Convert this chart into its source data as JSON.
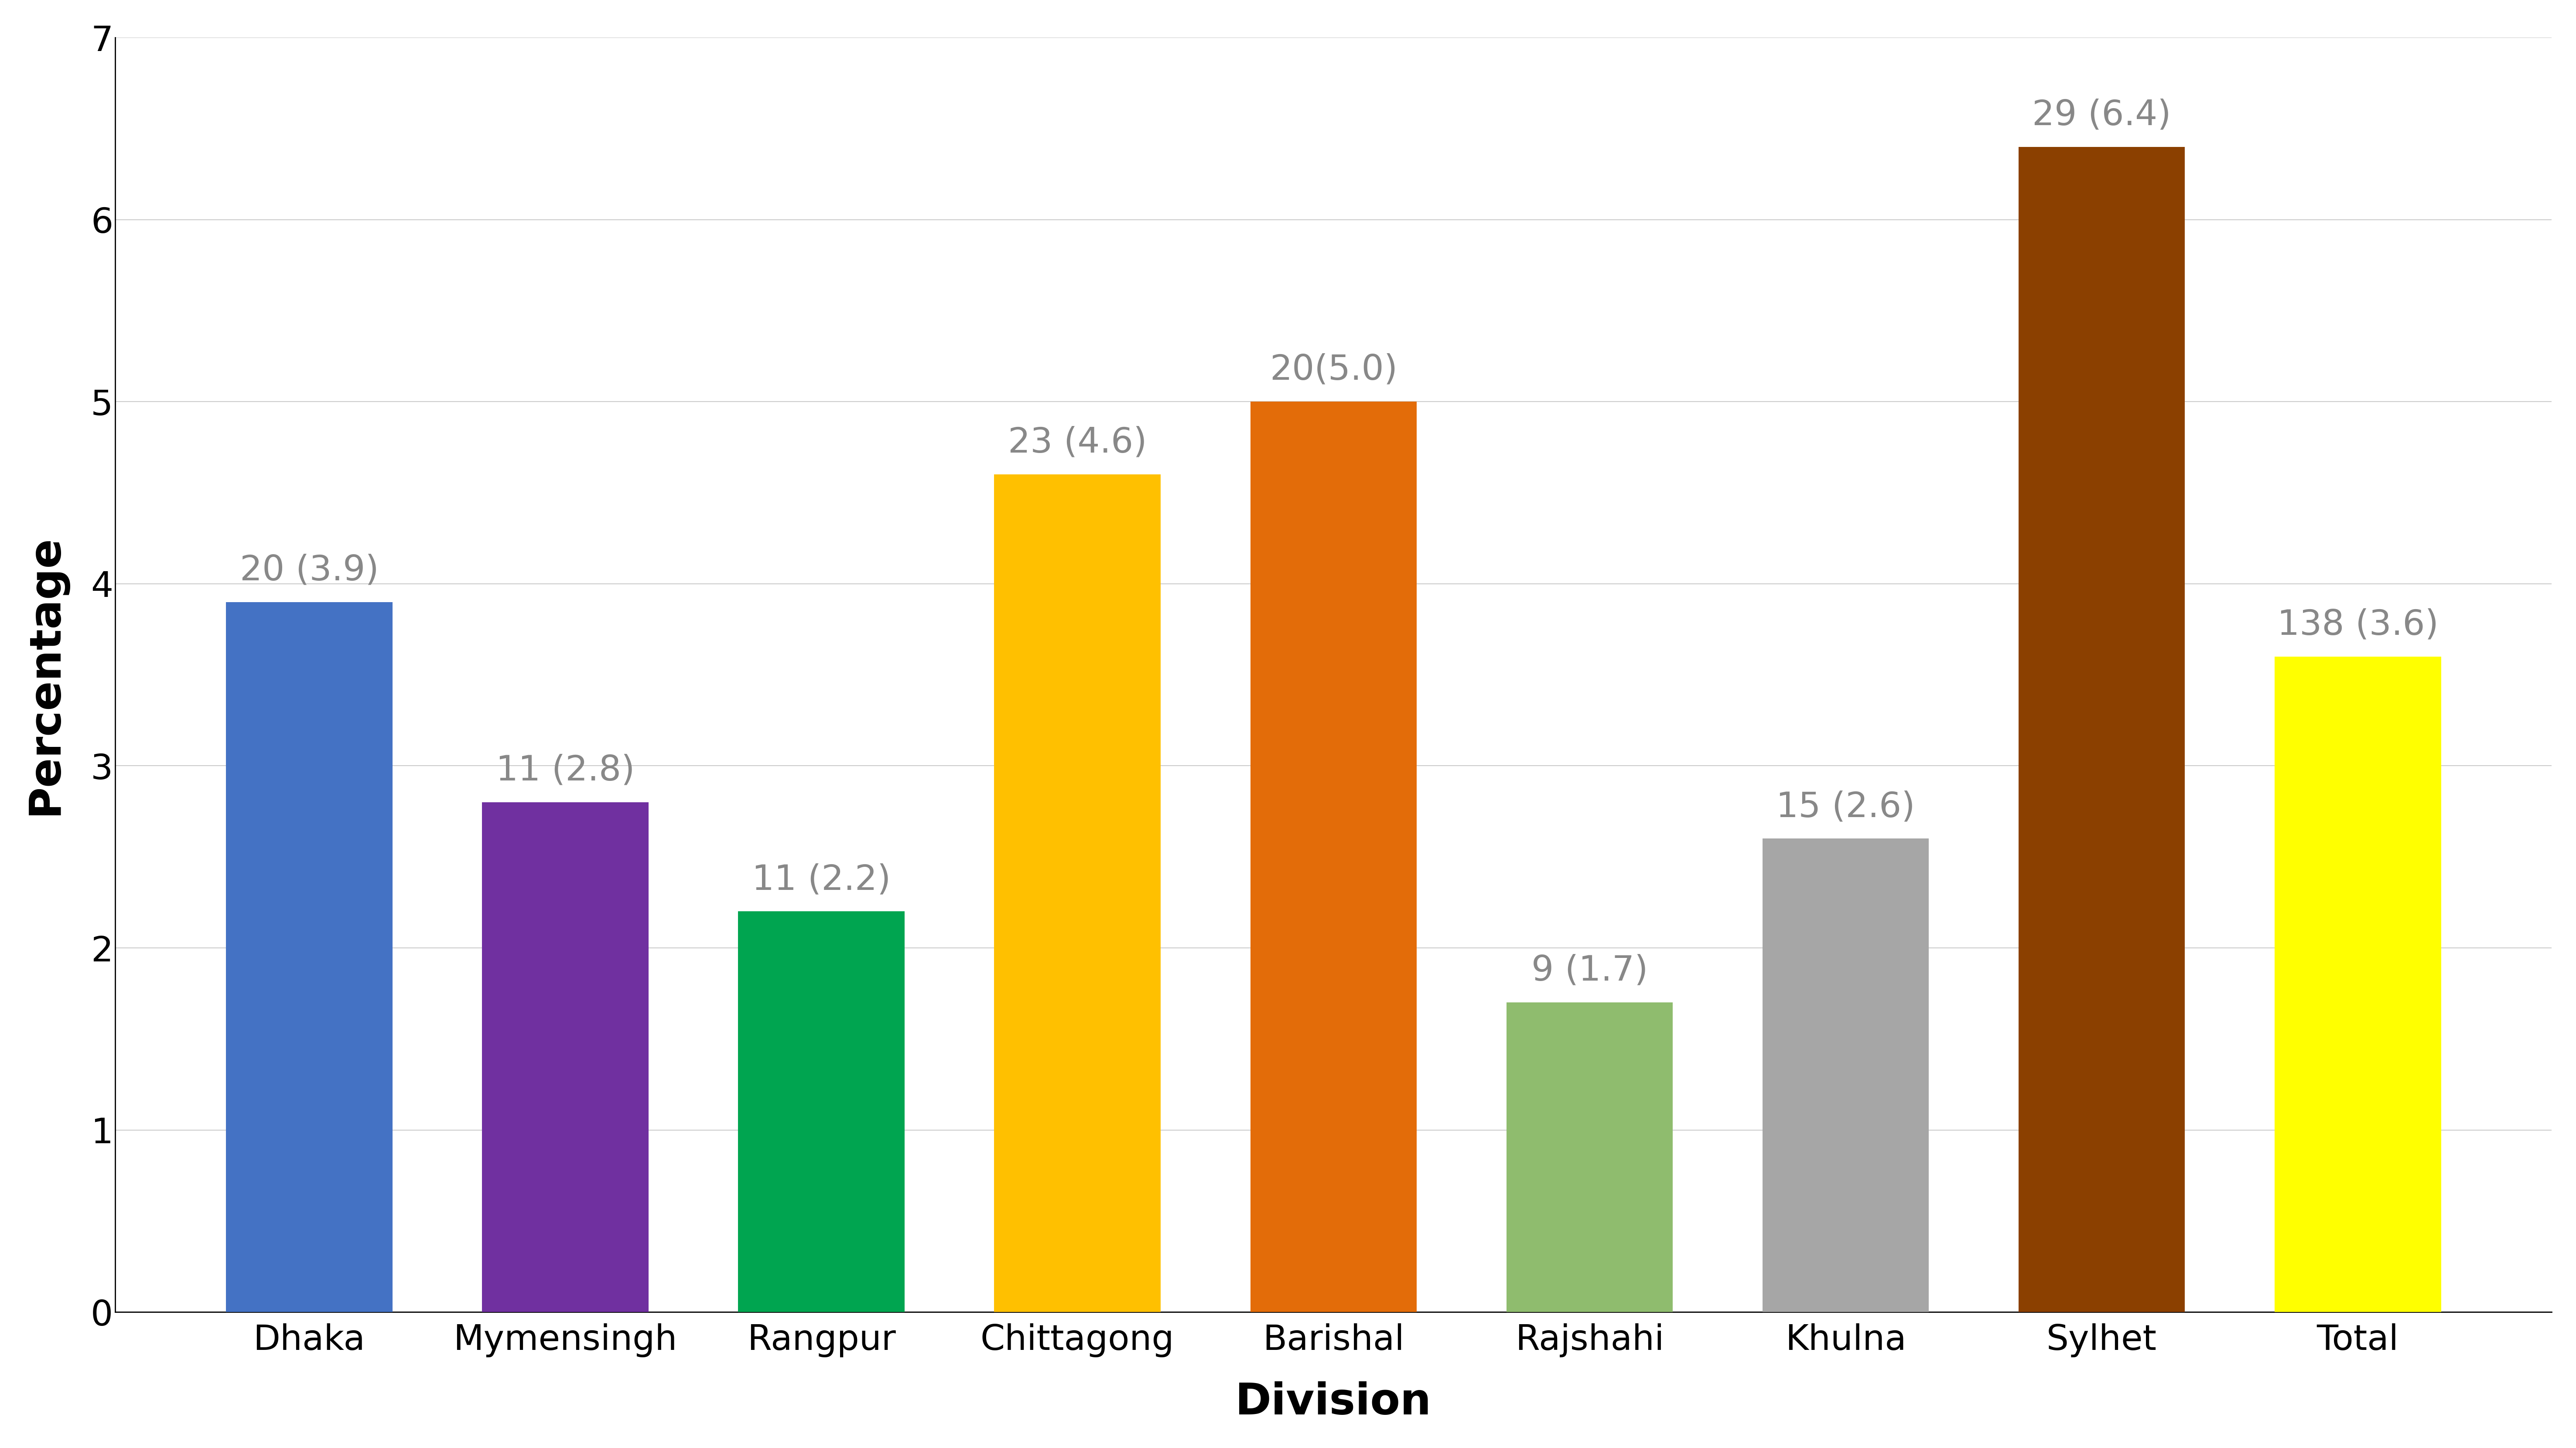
{
  "categories": [
    "Dhaka",
    "Mymensingh",
    "Rangpur",
    "Chittagong",
    "Barishal",
    "Rajshahi",
    "Khulna",
    "Sylhet",
    "Total"
  ],
  "values": [
    3.9,
    2.8,
    2.2,
    4.6,
    5.0,
    1.7,
    2.6,
    6.4,
    3.6
  ],
  "labels": [
    "20 (3.9)",
    "11 (2.8)",
    "11 (2.2)",
    "23 (4.6)",
    "20(5.0)",
    "9 (1.7)",
    "15 (2.6)",
    "29 (6.4)",
    "138 (3.6)"
  ],
  "bar_colors": [
    "#4472C4",
    "#7030A0",
    "#00A550",
    "#FFC000",
    "#E36C09",
    "#8FBC6E",
    "#A6A6A6",
    "#8B4000",
    "#FFFF00"
  ],
  "xlabel": "Division",
  "ylabel": "Percentage",
  "ylim": [
    0,
    7
  ],
  "yticks": [
    0,
    1,
    2,
    3,
    4,
    5,
    6,
    7
  ],
  "label_color": "#888888",
  "label_fontsize": 58,
  "axis_label_fontsize": 72,
  "tick_fontsize": 58,
  "bar_width": 0.65,
  "background_color": "#FFFFFF",
  "grid_color": "#CCCCCC",
  "grid_linewidth": 1.5
}
